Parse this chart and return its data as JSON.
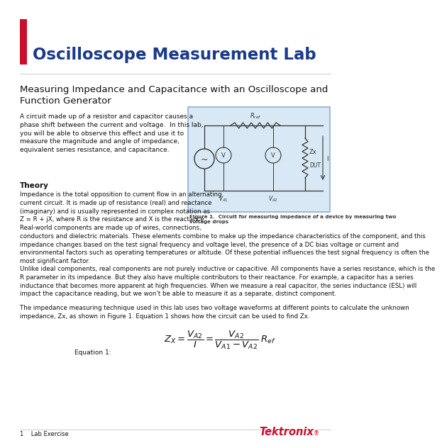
{
  "title": "Oscilloscope Measurement Lab",
  "subtitle": "Measuring Impedance and Capacitance with an Oscilloscope and\nFunction Generator",
  "title_color": "#1a3a8a",
  "accent_color": "#c8102e",
  "body_color": "#111111",
  "bg_color": "#ffffff",
  "circuit_bg": "#d8e8f4",
  "circuit_border": "#90b0cc",
  "section_theory": "Theory",
  "para1": "A circuit made up of a resistor and capacitor causes a\nphase shift between the current and voltage.  In this lab,\nyou will be able to observe this effect and use it to\nmeasure the magnitude and angle of impedance,\nequivalent series resistance, and capacitance.",
  "para_theory1": "Impedance is the total opposition to current flow in an alternating\ncurrent circuit. It is made up of resistance (real) and reactance\n(imaginary) and is usually represented in complex notation as\nZ = R + jX, where R is the resistance and X is the reactance.",
  "para_theory2": "Real-world components are made up of wires, connections,\nconductors and dielectric materials. These elements combine to make up the impedance characteristics of the component, and this\nimpedance changes based on the test signal frequency and voltage level, the presence of a DC bias voltage or current and\nenvironmental factors such as operating temperatures or altitude. Of these potential influences the test signal frequency is often the\nmost significant factor.",
  "para_theory3": "Unlike ideal components, real components are not purely inductive or capacitive. All components have a series resistance, which is the\nR parameter in its impedance. But they also have multiple contributors to their reactance. For example, a capacitor has a series\ninductance that becomes more apparent at high frequencies. When we measure a real capacitor, the series inductance (ESL) will\nimpact the capacitance reading, but we won't be able to measure it as a separate, distinct component.",
  "para_theory4": "The impedance measuring technique used in this lab uses two voltage waveforms at different points to calculate the unknown\nimpedance, Zx, as shown in Figure 1. Equation 1 shows how the circuit can be used to find Zx.",
  "fig_caption": "Figure 1.  Circuit for measuring impedance of a device by measuring two\nvoltage drops",
  "equation_label": "Equation 1:",
  "footer_text": "1    Lab Exercise",
  "logo_text": "Tektronix",
  "logo_superscript": "®",
  "logo_color": "#c8102e"
}
